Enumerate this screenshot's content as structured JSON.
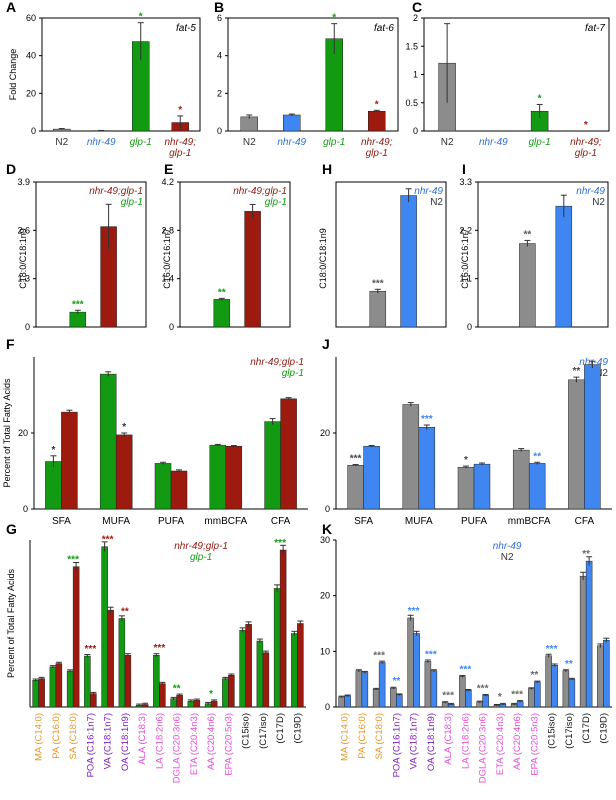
{
  "colors": {
    "gray": "#8c8c8c",
    "green": "#139a13",
    "red": "#9c1a0e",
    "blue": "#3f86f0",
    "nhr49": "#2f6fd6",
    "glp1": "#139a13",
    "nhr49glp1": "#8b1a10",
    "n2": "#333333",
    "orange": "#e8962a",
    "purple": "#7d1fb8",
    "pink": "#e24fd6",
    "black": "#111111"
  },
  "panels": {
    "A": "A",
    "B": "B",
    "C": "C",
    "D": "D",
    "E": "E",
    "F": "F",
    "G": "G",
    "H": "H",
    "I": "I",
    "J": "J",
    "K": "K"
  },
  "chart_data": [
    {
      "id": "A",
      "type": "bar",
      "gene": "fat-5",
      "ylabel": "Fold Change",
      "ylim": [
        0,
        60
      ],
      "yticks": [
        "0",
        "20",
        "40",
        "60"
      ],
      "categories": [
        "N2",
        "nhr-49",
        "glp-1",
        "nhr-49; glp-1"
      ],
      "values": [
        1.0,
        0.2,
        47.5,
        4.5
      ],
      "errors": [
        0.3,
        0.1,
        10,
        3.5
      ],
      "stars": [
        "",
        "",
        "*",
        "*"
      ]
    },
    {
      "id": "B",
      "type": "bar",
      "gene": "fat-6",
      "ylim": [
        0,
        6
      ],
      "yticks": [
        "0",
        "2",
        "4",
        "6"
      ],
      "categories": [
        "N2",
        "nhr-49",
        "glp-1",
        "nhr-49; glp-1"
      ],
      "values": [
        0.75,
        0.85,
        4.9,
        1.05
      ],
      "errors": [
        0.1,
        0.05,
        0.8,
        0.05
      ],
      "stars": [
        "",
        "",
        "*",
        "*"
      ]
    },
    {
      "id": "C",
      "type": "bar",
      "gene": "fat-7",
      "ylim": [
        0,
        2
      ],
      "yticks": [
        "0",
        "0.5",
        "1",
        "1.5",
        "2"
      ],
      "categories": [
        "N2",
        "nhr-49",
        "glp-1",
        "nhr-49; glp-1"
      ],
      "values": [
        1.2,
        0.0,
        0.35,
        0.0
      ],
      "errors": [
        0.7,
        0,
        0.12,
        0
      ],
      "stars": [
        "",
        "",
        "*",
        "*"
      ]
    },
    {
      "id": "D",
      "type": "bar",
      "ylabel": "C18:0/C18:1n9",
      "ylim": [
        0,
        3.9
      ],
      "yticks": [
        "0",
        "1.3",
        "2.6",
        "3.9"
      ],
      "legend": [
        "nhr-49;glp-1",
        "glp-1"
      ],
      "values": [
        0.4,
        2.7
      ],
      "errors": [
        0.05,
        0.6
      ],
      "stars": [
        "***",
        ""
      ]
    },
    {
      "id": "E",
      "type": "bar",
      "ylabel": "C16:0/C16:1n7",
      "ylim": [
        0,
        4.2
      ],
      "yticks": [
        "0",
        "1.4",
        "2.8",
        "4.2"
      ],
      "legend": [
        "nhr-49;glp-1",
        "glp-1"
      ],
      "values": [
        0.8,
        3.35
      ],
      "errors": [
        0.03,
        0.2
      ],
      "stars": [
        "**",
        ""
      ]
    },
    {
      "id": "H",
      "type": "bar",
      "ylabel": "C18:0/C18:1n9",
      "ylim": [
        0,
        1.5
      ],
      "legend": [
        "nhr-49",
        "N2"
      ],
      "values": [
        0.37,
        1.36
      ],
      "errors": [
        0.02,
        0.07
      ],
      "stars": [
        "***",
        ""
      ]
    },
    {
      "id": "I",
      "type": "bar",
      "ylabel": "C16:0/C16:1n7",
      "ylim": [
        0,
        3.3
      ],
      "yticks": [
        "0",
        "1.1",
        "2.2",
        "3.3"
      ],
      "legend": [
        "nhr-49",
        "N2"
      ],
      "values": [
        1.9,
        2.75
      ],
      "errors": [
        0.07,
        0.25
      ],
      "stars": [
        "**",
        ""
      ]
    },
    {
      "id": "F",
      "type": "bar",
      "ylabel": "Percent of Total Fatty Acids",
      "ylim": [
        0,
        40
      ],
      "yticks": [
        "0",
        "20"
      ],
      "legend": [
        "nhr-49;glp-1",
        "glp-1"
      ],
      "categories": [
        "SFA",
        "MUFA",
        "PUFA",
        "mmBCFA",
        "CFA"
      ],
      "series": [
        {
          "values": [
            12.5,
            35.5,
            12,
            16.8,
            23
          ]
        },
        {
          "values": [
            25.5,
            19.5,
            10,
            16.5,
            29
          ]
        }
      ],
      "errors": [
        [
          1.5,
          0.6,
          0.3,
          0.2,
          0.8
        ],
        [
          0.5,
          0.5,
          0.3,
          0.2,
          0.3
        ]
      ],
      "stars": [
        [
          "*",
          "",
          ""
        ],
        [
          "",
          "*",
          ""
        ],
        [
          "",
          "",
          ""
        ],
        [
          "",
          "",
          ""
        ],
        [
          "",
          "",
          ""
        ]
      ]
    },
    {
      "id": "J",
      "type": "bar",
      "ylim": [
        0,
        40
      ],
      "yticks": [
        "0",
        "20"
      ],
      "legend": [
        "nhr-49",
        "N2"
      ],
      "categories": [
        "SFA",
        "MUFA",
        "PUFA",
        "mmBCFA",
        "CFA"
      ],
      "series": [
        {
          "values": [
            11.5,
            27.5,
            11,
            15.5,
            34
          ]
        },
        {
          "values": [
            16.5,
            21.5,
            11.8,
            12,
            38
          ]
        }
      ],
      "errors": [
        [
          0.2,
          0.5,
          0.3,
          0.4,
          0.7
        ],
        [
          0.2,
          0.6,
          0.3,
          0.3,
          0.9
        ]
      ],
      "stars": [
        [
          "***",
          ""
        ],
        [
          "",
          "***"
        ],
        [
          "*",
          ""
        ],
        [
          "",
          "**"
        ],
        [
          "**",
          ""
        ]
      ]
    },
    {
      "id": "G",
      "type": "bar",
      "ylabel": "Percent of Total Fatty Acids",
      "ylim": [
        0,
        20
      ],
      "legend": [
        "nhr-49;glp-1",
        "glp-1"
      ],
      "categories": [
        "MA (C14:0)",
        "PA (C16:0)",
        "SA (C18:0)",
        "POA (C16:1n7)",
        "VA (C18:1n7)",
        "OA (C18:1n9)",
        "ALA (C18:3)",
        "LA (C18:2n6)",
        "DGLA (C20:3n6)",
        "ETA (C20:4n3)",
        "AA (C20:4n6)",
        "EPA (C20:5n3)",
        "(C15iso)",
        "(C17iso)",
        "(C17D)",
        "(C19D)"
      ],
      "catColors": [
        "orange",
        "orange",
        "orange",
        "purple",
        "purple",
        "purple",
        "pink",
        "pink",
        "pink",
        "pink",
        "pink",
        "pink",
        "black",
        "black",
        "black",
        "black"
      ],
      "series": [
        {
          "values": [
            3.2,
            4.8,
            4.3,
            6.1,
            19.2,
            10.6,
            0.2,
            6.2,
            1.0,
            0.7,
            0.4,
            3.4,
            9.2,
            7.9,
            14.2,
            8.8
          ]
        },
        {
          "values": [
            3.4,
            5.2,
            16.8,
            1.6,
            11.6,
            6.2,
            0.3,
            2.8,
            1.4,
            0.8,
            0.7,
            3.8,
            9.9,
            6.5,
            18.8,
            10.0
          ]
        }
      ],
      "stars": [
        "",
        "",
        "***",
        "***",
        "***",
        "**",
        "",
        "***",
        "**",
        "",
        "*",
        "",
        "",
        "",
        "***",
        ""
      ],
      "starColors": [
        "",
        "",
        "green",
        "red",
        "red",
        "red",
        "",
        "red",
        "green",
        "",
        "green",
        "",
        "",
        "",
        "green",
        ""
      ]
    },
    {
      "id": "K",
      "type": "bar",
      "ylim": [
        0,
        30
      ],
      "yticks": [
        "0",
        "10",
        "20",
        "30"
      ],
      "legend": [
        "nhr-49",
        "N2"
      ],
      "categories": [
        "MA (C14:0)",
        "PA (C16:0)",
        "SA (C18:0)",
        "POA (C16:1n7)",
        "VA (C18:1n7)",
        "OA (C18:1n9)",
        "ALA (C18:3)",
        "LA (C18:2n6)",
        "DGLA (C20:3n6)",
        "ETA (C20:4n3)",
        "AA (C20:4n6)",
        "EPA (C20:5n3)",
        "(C15iso)",
        "(C17iso)",
        "(C17D)",
        "(C19D)"
      ],
      "catColors": [
        "orange",
        "orange",
        "orange",
        "purple",
        "purple",
        "purple",
        "pink",
        "pink",
        "pink",
        "pink",
        "pink",
        "pink",
        "black",
        "black",
        "black",
        "black"
      ],
      "series": [
        {
          "values": [
            1.8,
            6.5,
            3.2,
            3.4,
            16.0,
            8.2,
            0.8,
            5.5,
            0.9,
            0.3,
            0.5,
            3.3,
            9.2,
            6.5,
            23.5,
            11.0
          ]
        },
        {
          "values": [
            2.0,
            6.2,
            8.0,
            2.2,
            13.2,
            6.5,
            0.5,
            3.0,
            2.1,
            0.5,
            1.0,
            4.5,
            7.5,
            5.0,
            26.2,
            12.0
          ]
        }
      ],
      "stars": [
        "",
        "",
        "***",
        "**",
        "***",
        "***",
        "***",
        "***",
        "***",
        "*",
        "***",
        "**",
        "***",
        "**",
        "**",
        ""
      ],
      "starColors": [
        "",
        "",
        "gray",
        "blue",
        "blue",
        "blue",
        "gray",
        "blue",
        "gray",
        "gray",
        "gray",
        "gray",
        "blue",
        "blue",
        "gray",
        ""
      ]
    }
  ]
}
